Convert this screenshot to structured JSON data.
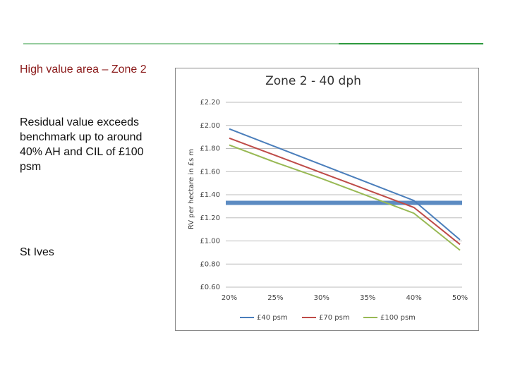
{
  "slide": {
    "heading": "High value area – Zone 2",
    "body": "Residual value exceeds benchmark up to around 40% AH and CIL of £100 psm",
    "location": "St Ives"
  },
  "chart_data": {
    "type": "line",
    "title": "Zone 2 - 40 dph",
    "y_label": "RV per hectare in £s m",
    "categories": [
      "20%",
      "25%",
      "30%",
      "35%",
      "40%",
      "50%"
    ],
    "series": [
      {
        "name": "£40 psm",
        "color": "#4a7ebb",
        "values": [
          1.97,
          1.815,
          1.66,
          1.505,
          1.35,
          1.01
        ]
      },
      {
        "name": "£70 psm",
        "color": "#be4b48",
        "values": [
          1.89,
          1.74,
          1.59,
          1.44,
          1.29,
          0.97
        ]
      },
      {
        "name": "£100 psm",
        "color": "#98b954",
        "values": [
          1.83,
          1.68,
          1.54,
          1.39,
          1.24,
          0.92
        ]
      }
    ],
    "reference_line": {
      "value": 1.33,
      "color": "#4a7ebb"
    },
    "ylim": [
      0.6,
      2.2
    ],
    "yticks": [
      {
        "value": 0.6,
        "label": "£0.60"
      },
      {
        "value": 0.8,
        "label": "£0.80"
      },
      {
        "value": 1.0,
        "label": "£1.00"
      },
      {
        "value": 1.2,
        "label": "£1.20"
      },
      {
        "value": 1.4,
        "label": "£1.40"
      },
      {
        "value": 1.6,
        "label": "£1.60"
      },
      {
        "value": 1.8,
        "label": "£1.80"
      },
      {
        "value": 2.0,
        "label": "£2.00"
      },
      {
        "value": 2.2,
        "label": "£2.20"
      }
    ],
    "grid": true,
    "legend": "bottom"
  }
}
